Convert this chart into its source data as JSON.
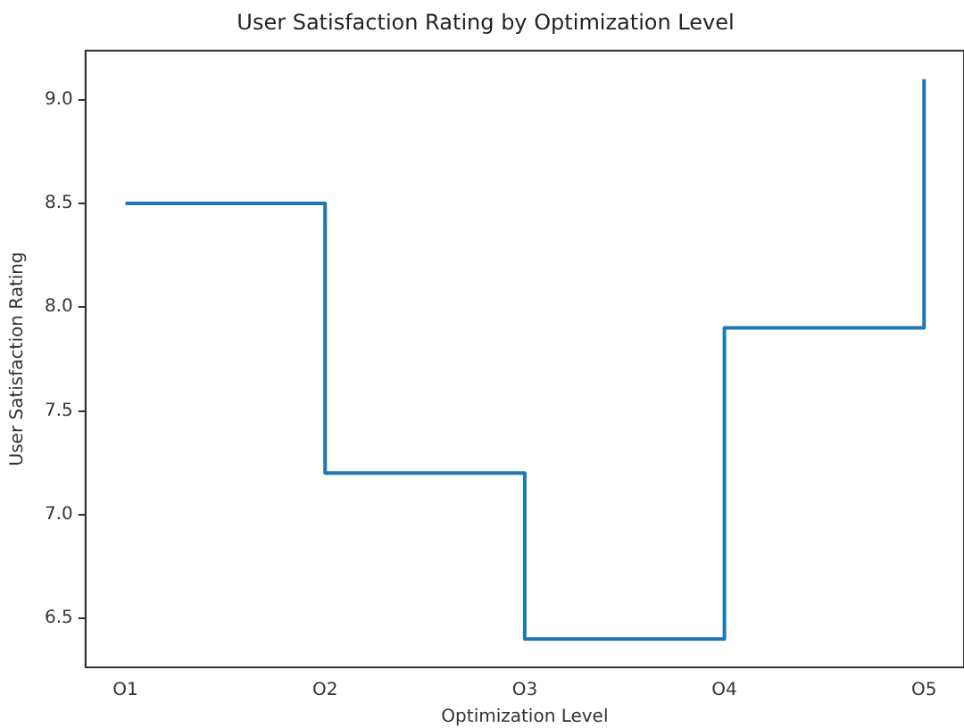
{
  "chart_data": {
    "type": "step",
    "title": "User Satisfaction Rating by Optimization Level",
    "xlabel": "Optimization Level",
    "ylabel": "User Satisfaction Rating",
    "categories": [
      "O1",
      "O2",
      "O3",
      "O4",
      "O5"
    ],
    "series": [
      {
        "color": "#1f77b4",
        "values": [
          8.5,
          7.2,
          6.4,
          7.9,
          9.1
        ]
      }
    ],
    "ylim": [
      6.263,
      9.237
    ],
    "yticks": [
      {
        "value": 6.5,
        "label": "6.5"
      },
      {
        "value": 7.0,
        "label": "7.0"
      },
      {
        "value": 7.5,
        "label": "7.5"
      },
      {
        "value": 8.0,
        "label": "8.0"
      },
      {
        "value": 8.5,
        "label": "8.5"
      },
      {
        "value": 9.0,
        "label": "9.0"
      }
    ],
    "grid": false,
    "legend": false
  }
}
